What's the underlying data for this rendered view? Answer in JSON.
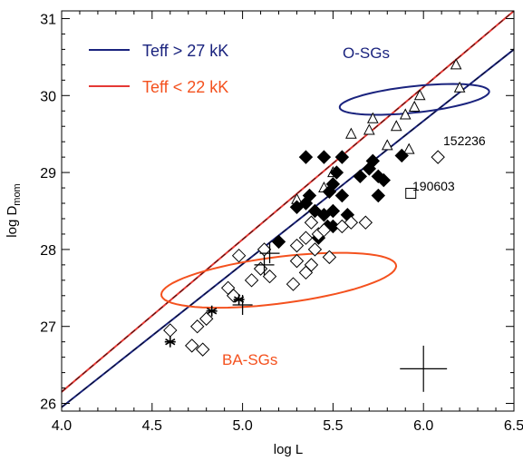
{
  "chart_data": {
    "type": "scatter",
    "xlabel": "log L",
    "ylabel_main": "log D",
    "ylabel_sub": "mom",
    "xlim": [
      4.0,
      6.5
    ],
    "ylim": [
      25.9,
      31.1
    ],
    "xticks": [
      "4.0",
      "4.5",
      "5.0",
      "5.5",
      "6.0",
      "6.5"
    ],
    "xtick_values": [
      4.0,
      4.5,
      5.0,
      5.5,
      6.0,
      6.5
    ],
    "yticks": [
      "26",
      "27",
      "28",
      "29",
      "30",
      "31"
    ],
    "ytick_values": [
      26,
      27,
      28,
      29,
      30,
      31
    ],
    "grid": false,
    "legend": [
      {
        "label": "Teff > 27 kK",
        "color": "#1a237e"
      },
      {
        "label": "Teff < 22 kK",
        "color": "#e53935"
      }
    ],
    "fit_lines": [
      {
        "name": "Teff > 27 kK",
        "color": "#1a237e",
        "x": [
          4.0,
          6.5
        ],
        "y": [
          25.95,
          30.6
        ]
      },
      {
        "name": "Teff < 22 kK",
        "color": "#e53935",
        "x": [
          4.0,
          6.5
        ],
        "y": [
          26.15,
          31.1
        ]
      }
    ],
    "regions": [
      {
        "label": "O-SGs",
        "color": "#1a237e",
        "center": [
          5.95,
          29.95
        ],
        "semi_major": 0.48,
        "semi_minor": 0.27,
        "angle_data": 38
      },
      {
        "label": "BA-SGs",
        "color": "#f4511e",
        "center": [
          5.2,
          27.6
        ],
        "semi_major": 0.8,
        "semi_minor": 0.45,
        "angle_data": 45
      }
    ],
    "series": [
      {
        "marker": "triangle",
        "points": [
          [
            5.3,
            28.65
          ],
          [
            5.45,
            28.8
          ],
          [
            5.5,
            29.0
          ],
          [
            5.6,
            29.5
          ],
          [
            5.7,
            29.55
          ],
          [
            5.72,
            29.7
          ],
          [
            5.85,
            29.6
          ],
          [
            5.9,
            29.75
          ],
          [
            5.95,
            29.85
          ],
          [
            5.98,
            30.0
          ],
          [
            6.18,
            30.4
          ],
          [
            6.2,
            30.1
          ],
          [
            5.8,
            29.35
          ],
          [
            5.92,
            29.3
          ]
        ]
      },
      {
        "marker": "diamond-filled",
        "points": [
          [
            5.2,
            28.1
          ],
          [
            5.3,
            28.55
          ],
          [
            5.35,
            28.6
          ],
          [
            5.37,
            28.7
          ],
          [
            5.4,
            28.5
          ],
          [
            5.45,
            28.45
          ],
          [
            5.45,
            29.2
          ],
          [
            5.48,
            28.75
          ],
          [
            5.5,
            28.85
          ],
          [
            5.5,
            28.5
          ],
          [
            5.52,
            29.0
          ],
          [
            5.55,
            29.2
          ],
          [
            5.55,
            28.7
          ],
          [
            5.58,
            28.45
          ],
          [
            5.5,
            28.3
          ],
          [
            5.35,
            29.2
          ],
          [
            5.65,
            28.95
          ],
          [
            5.7,
            29.05
          ],
          [
            5.72,
            29.15
          ],
          [
            5.75,
            28.95
          ],
          [
            5.78,
            28.9
          ],
          [
            5.75,
            28.7
          ],
          [
            5.88,
            29.22
          ],
          [
            5.47,
            28.3
          ],
          [
            5.42,
            28.15
          ]
        ]
      },
      {
        "marker": "diamond-open",
        "points": [
          [
            4.6,
            26.95
          ],
          [
            4.72,
            26.75
          ],
          [
            4.75,
            27.0
          ],
          [
            4.78,
            26.7
          ],
          [
            4.8,
            27.1
          ],
          [
            4.92,
            27.5
          ],
          [
            4.95,
            27.4
          ],
          [
            4.98,
            27.92
          ],
          [
            5.05,
            27.6
          ],
          [
            5.1,
            27.75
          ],
          [
            5.15,
            27.65
          ],
          [
            5.12,
            28.0
          ],
          [
            5.28,
            27.55
          ],
          [
            5.3,
            27.85
          ],
          [
            5.35,
            27.7
          ],
          [
            5.38,
            27.8
          ],
          [
            5.3,
            28.05
          ],
          [
            5.35,
            28.15
          ],
          [
            5.38,
            28.35
          ],
          [
            5.4,
            28.0
          ],
          [
            5.42,
            28.2
          ],
          [
            5.45,
            28.25
          ],
          [
            5.48,
            27.9
          ],
          [
            5.55,
            28.3
          ],
          [
            5.6,
            28.35
          ],
          [
            5.68,
            28.35
          ],
          [
            6.08,
            29.2
          ]
        ]
      },
      {
        "marker": "asterisk",
        "points": [
          [
            4.6,
            26.8
          ],
          [
            4.83,
            27.2
          ],
          [
            4.98,
            27.35
          ]
        ]
      },
      {
        "marker": "plus",
        "points": [
          [
            5.0,
            27.28
          ],
          [
            5.12,
            27.8
          ],
          [
            5.15,
            27.95
          ]
        ]
      },
      {
        "marker": "square-open",
        "points": [
          [
            5.93,
            28.73
          ]
        ]
      }
    ],
    "error_bar": {
      "x": 6.0,
      "y": 26.45,
      "dx": 0.13,
      "dy": 0.3
    },
    "annotations": [
      {
        "text": "152236",
        "x": 6.13,
        "y": 29.35
      },
      {
        "text": "190603",
        "x": 5.97,
        "y": 28.8
      }
    ]
  }
}
